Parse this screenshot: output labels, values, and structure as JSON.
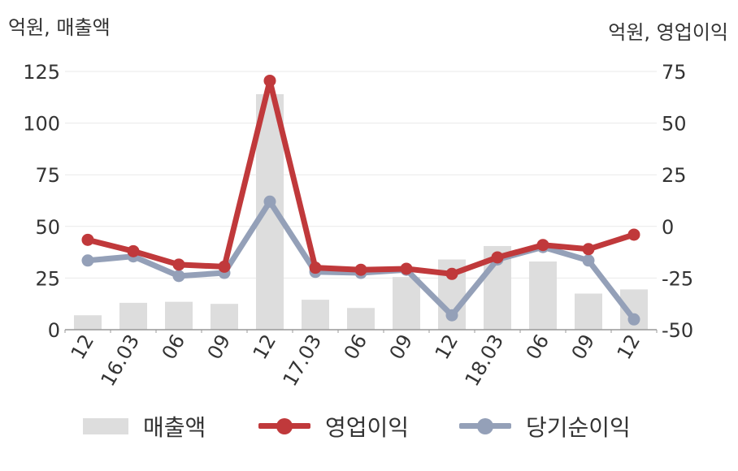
{
  "chart_data": {
    "type": "bar+line",
    "y_left_label": "억원, 매출액",
    "y_right_label": "억원, 영업이익",
    "categories": [
      "12",
      "16.03",
      "06",
      "09",
      "12",
      "17.03",
      "06",
      "09",
      "12",
      "18.03",
      "06",
      "09",
      "12"
    ],
    "y_left_ticks": [
      "0",
      "25",
      "50",
      "75",
      "100",
      "125"
    ],
    "y_right_ticks": [
      "-50",
      "-25",
      "0",
      "25",
      "50",
      "75"
    ],
    "ylim_left": [
      0,
      125
    ],
    "ylim_right": [
      -50,
      75
    ],
    "grid": true,
    "legend_position": "bottom",
    "series": [
      {
        "name": "매출액",
        "type": "bar",
        "axis": "left",
        "color": "#dddddd",
        "values": [
          7,
          13,
          13.5,
          12.5,
          114,
          14.5,
          10.5,
          25.5,
          34,
          40.5,
          33,
          17.5,
          19.5
        ]
      },
      {
        "name": "영업이익",
        "type": "line",
        "axis": "right",
        "color": "#c0393b",
        "values": [
          -6.5,
          -12,
          -18.5,
          -19.5,
          70.5,
          -20,
          -21,
          -20.5,
          -23,
          -15,
          -9,
          -11,
          -4
        ]
      },
      {
        "name": "당기순이익",
        "type": "line",
        "axis": "right",
        "color": "#94a0b8",
        "values": [
          -16.5,
          -14.5,
          -24,
          -22.5,
          12,
          -22,
          -22.5,
          -21,
          -43,
          -16,
          -10,
          -16.5,
          -45
        ]
      }
    ]
  }
}
